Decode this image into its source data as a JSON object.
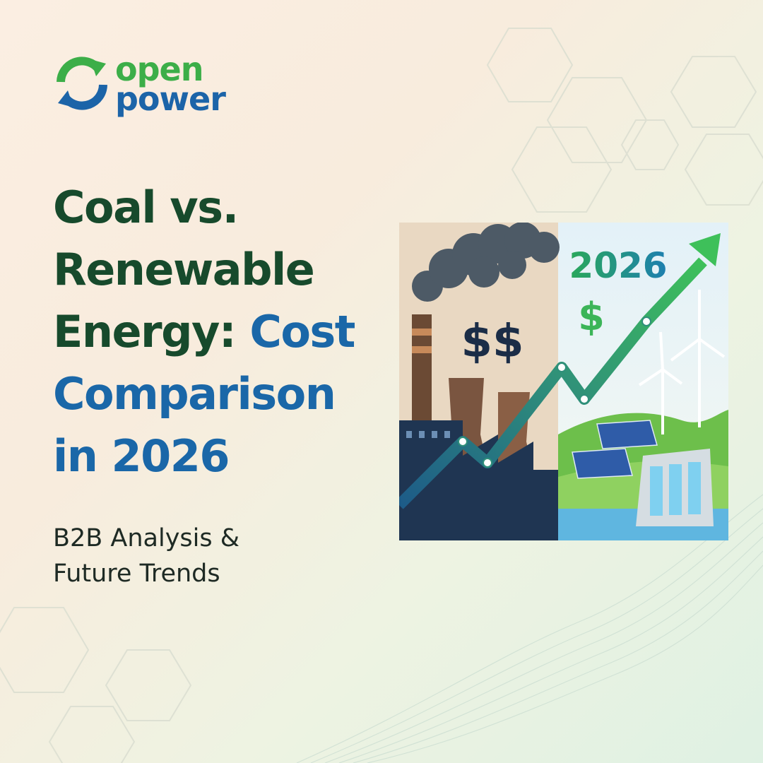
{
  "logo": {
    "line1": "open",
    "line2": "power"
  },
  "headline": {
    "dark": "Coal vs. Renewable Energy:",
    "highlight": "Cost Comparison in 2026"
  },
  "subtitle": "B2B Analysis & Future Trends",
  "illustration": {
    "coal_cost": "$$",
    "year": "2026",
    "renewable_cost": "$"
  }
}
